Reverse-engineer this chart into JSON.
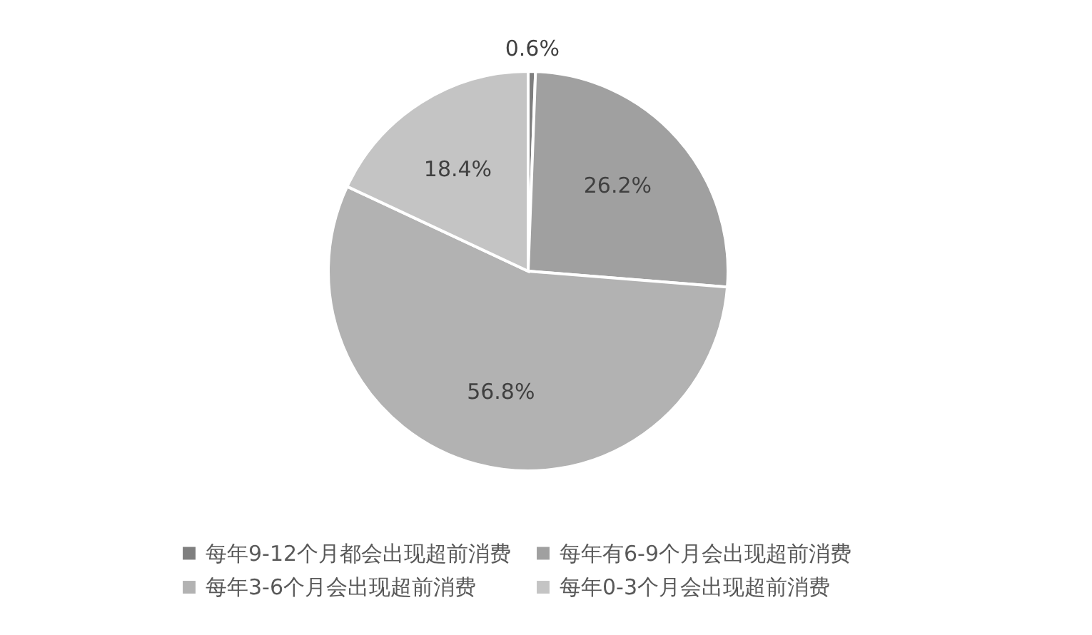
{
  "chart_data": {
    "type": "pie",
    "categories": [
      "每年9-12个月都会出现超前消费",
      "每年有6-9个月会出现超前消费",
      "每年3-6个月会出现超前消费",
      "每年0-3个月会出现超前消费"
    ],
    "values": [
      0.6,
      26.2,
      56.8,
      18.4
    ],
    "colors": [
      "#7f7f7f",
      "#a0a0a0",
      "#b2b2b2",
      "#c4c4c4"
    ],
    "value_labels": [
      "0.6%",
      "26.2%",
      "56.8%",
      "18.4%"
    ],
    "legend": "bottom"
  }
}
